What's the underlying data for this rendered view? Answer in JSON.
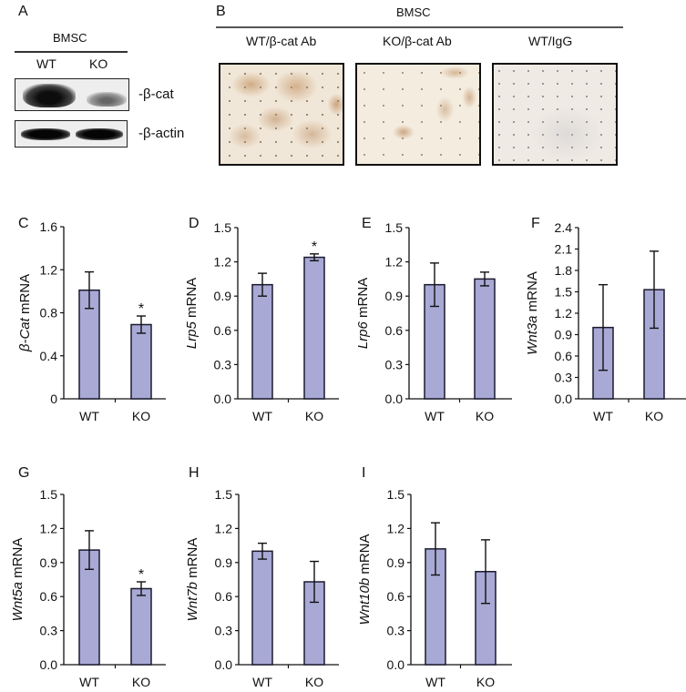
{
  "colors": {
    "bar_fill": "#a9a9d6",
    "bar_stroke": "#1a1a2e",
    "axis": "#111111",
    "micro_bg": "#f3ead9",
    "stain_brown": "#c9a27a"
  },
  "panel_a": {
    "letter": "A",
    "group_label": "BMSC",
    "lanes": [
      "WT",
      "KO"
    ],
    "rows": [
      {
        "label": "-β-cat"
      },
      {
        "label": "-β-actin"
      }
    ]
  },
  "panel_b": {
    "letter": "B",
    "group_label": "BMSC",
    "images": [
      {
        "label": "WT/β-cat Ab"
      },
      {
        "label": "KO/β-cat Ab"
      },
      {
        "label": "WT/IgG"
      }
    ]
  },
  "chart_data": [
    {
      "panel": "C",
      "type": "bar",
      "title": "",
      "categories": [
        "WT",
        "KO"
      ],
      "values": [
        1.01,
        0.69
      ],
      "errors": [
        0.17,
        0.08
      ],
      "significance": [
        "",
        "*"
      ],
      "ylabel_italic": "β-Cat",
      "ylabel_rest": " mRNA",
      "xlabel": "",
      "ylim": [
        0,
        1.6
      ],
      "yticks": [
        "0",
        "0.4",
        "0.8",
        "1.2",
        "1.6"
      ],
      "grid": false
    },
    {
      "panel": "D",
      "type": "bar",
      "title": "",
      "categories": [
        "WT",
        "KO"
      ],
      "values": [
        1.0,
        1.24
      ],
      "errors": [
        0.1,
        0.03
      ],
      "significance": [
        "",
        "*"
      ],
      "ylabel_italic": "Lrp5",
      "ylabel_rest": " mRNA",
      "xlabel": "",
      "ylim": [
        0,
        1.5
      ],
      "yticks": [
        "0.0",
        "0.3",
        "0.6",
        "0.9",
        "1.2",
        "1.5"
      ],
      "grid": false
    },
    {
      "panel": "E",
      "type": "bar",
      "title": "",
      "categories": [
        "WT",
        "KO"
      ],
      "values": [
        1.0,
        1.05
      ],
      "errors": [
        0.19,
        0.06
      ],
      "significance": [
        "",
        ""
      ],
      "ylabel_italic": "Lrp6",
      "ylabel_rest": " mRNA",
      "xlabel": "",
      "ylim": [
        0,
        1.5
      ],
      "yticks": [
        "0.0",
        "0.3",
        "0.6",
        "0.9",
        "1.2",
        "1.5"
      ],
      "grid": false
    },
    {
      "panel": "F",
      "type": "bar",
      "title": "",
      "categories": [
        "WT",
        "KO"
      ],
      "values": [
        1.0,
        1.53
      ],
      "errors": [
        0.6,
        0.54
      ],
      "significance": [
        "",
        ""
      ],
      "ylabel_italic": "Wnt3a",
      "ylabel_rest": " mRNA",
      "xlabel": "",
      "ylim": [
        0,
        2.4
      ],
      "yticks": [
        "0.0",
        "0.3",
        "0.6",
        "0.9",
        "1.2",
        "1.5",
        "1.8",
        "2.1",
        "2.4"
      ],
      "grid": false
    },
    {
      "panel": "G",
      "type": "bar",
      "title": "",
      "categories": [
        "WT",
        "KO"
      ],
      "values": [
        1.01,
        0.67
      ],
      "errors": [
        0.17,
        0.06
      ],
      "significance": [
        "",
        "*"
      ],
      "ylabel_italic": "Wnt5a",
      "ylabel_rest": " mRNA",
      "xlabel": "",
      "ylim": [
        0,
        1.5
      ],
      "yticks": [
        "0.0",
        "0.3",
        "0.6",
        "0.9",
        "1.2",
        "1.5"
      ],
      "grid": false
    },
    {
      "panel": "H",
      "type": "bar",
      "title": "",
      "categories": [
        "WT",
        "KO"
      ],
      "values": [
        1.0,
        0.73
      ],
      "errors": [
        0.07,
        0.18
      ],
      "significance": [
        "",
        ""
      ],
      "ylabel_italic": "Wnt7b",
      "ylabel_rest": " mRNA",
      "xlabel": "",
      "ylim": [
        0,
        1.5
      ],
      "yticks": [
        "0.0",
        "0.3",
        "0.6",
        "0.9",
        "1.2",
        "1.5"
      ],
      "grid": false
    },
    {
      "panel": "I",
      "type": "bar",
      "title": "",
      "categories": [
        "WT",
        "KO"
      ],
      "values": [
        1.02,
        0.82
      ],
      "errors": [
        0.23,
        0.28
      ],
      "significance": [
        "",
        ""
      ],
      "ylabel_italic": "Wnt10b",
      "ylabel_rest": " mRNA",
      "xlabel": "",
      "ylim": [
        0,
        1.5
      ],
      "yticks": [
        "0.0",
        "0.3",
        "0.6",
        "0.9",
        "1.2",
        "1.5"
      ],
      "grid": false
    }
  ]
}
